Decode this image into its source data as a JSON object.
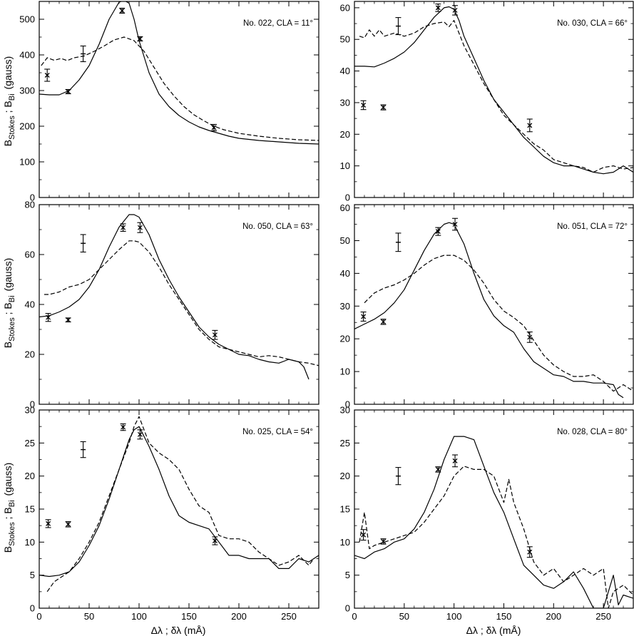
{
  "figure": {
    "ylabel": {
      "main1": "B",
      "sub1": "Stokes",
      "sep": " ; ",
      "main2": "B",
      "sub2": "Bi",
      "unit": "(gauss)"
    },
    "xlabel": "Δλ ; δλ (mÅ)"
  },
  "chart_data": [
    {
      "type": "line",
      "title": "No. 022, CLA = 11°",
      "xlim": [
        0,
        280
      ],
      "ylim": [
        0,
        550
      ],
      "xticks": [
        0,
        50,
        100,
        150,
        200,
        250
      ],
      "yticks": [
        0,
        100,
        200,
        300,
        400,
        500
      ],
      "series": [
        {
          "name": "solid",
          "style": "solid",
          "x": [
            0,
            10,
            20,
            30,
            40,
            50,
            60,
            70,
            80,
            85,
            90,
            95,
            100,
            110,
            120,
            130,
            140,
            150,
            160,
            170,
            180,
            190,
            200,
            220,
            240,
            260,
            280
          ],
          "y": [
            290,
            288,
            288,
            300,
            330,
            370,
            430,
            500,
            548,
            553,
            545,
            500,
            440,
            350,
            290,
            255,
            230,
            212,
            198,
            188,
            180,
            172,
            166,
            160,
            156,
            152,
            150
          ]
        },
        {
          "name": "dashed",
          "style": "dashed",
          "x": [
            2,
            8,
            15,
            22,
            28,
            35,
            45,
            55,
            65,
            75,
            85,
            95,
            105,
            115,
            125,
            135,
            145,
            155,
            165,
            175,
            185,
            200,
            220,
            240,
            260,
            280
          ],
          "y": [
            370,
            392,
            385,
            390,
            384,
            392,
            397,
            410,
            425,
            442,
            450,
            440,
            410,
            365,
            320,
            285,
            255,
            232,
            215,
            200,
            190,
            180,
            172,
            166,
            162,
            160
          ]
        },
        {
          "name": "data_points",
          "style": "points",
          "x": [
            8,
            29,
            44,
            83,
            101,
            175
          ],
          "y": [
            343,
            297,
            403,
            524,
            445,
            196
          ],
          "err": [
            17,
            6,
            22,
            7,
            6,
            9
          ],
          "marker": [
            "x",
            "x",
            "+",
            "x",
            "x",
            "x"
          ]
        }
      ]
    },
    {
      "type": "line",
      "title": "No. 030, CLA =  66°",
      "xlim": [
        0,
        280
      ],
      "ylim": [
        0,
        62
      ],
      "xticks": [
        0,
        50,
        100,
        150,
        200,
        250
      ],
      "yticks": [
        0,
        10,
        20,
        30,
        40,
        50,
        60
      ],
      "series": [
        {
          "name": "solid",
          "style": "solid",
          "x": [
            0,
            10,
            20,
            30,
            40,
            50,
            60,
            70,
            80,
            90,
            95,
            100,
            105,
            110,
            120,
            130,
            140,
            150,
            160,
            170,
            180,
            190,
            200,
            210,
            220,
            230,
            240,
            250,
            260,
            270,
            280
          ],
          "y": [
            41.5,
            41.5,
            41.3,
            42.5,
            44,
            46,
            49,
            53,
            57,
            60,
            60.3,
            59.5,
            56,
            51,
            44,
            37,
            31,
            27,
            23,
            19,
            16,
            13,
            11,
            10,
            10,
            9,
            8,
            7.5,
            8,
            10,
            8
          ]
        },
        {
          "name": "dashed",
          "style": "dashed",
          "x": [
            5,
            10,
            15,
            20,
            25,
            30,
            40,
            50,
            60,
            70,
            80,
            90,
            95,
            100,
            110,
            120,
            130,
            140,
            150,
            160,
            170,
            180,
            190,
            200,
            210,
            220,
            230,
            240,
            250,
            260,
            270,
            280
          ],
          "y": [
            51,
            50.5,
            53,
            51,
            53,
            51,
            52,
            51,
            52,
            54,
            55,
            55.5,
            54,
            56,
            48,
            42,
            36,
            31,
            26,
            23,
            20,
            17,
            15,
            12,
            11,
            10,
            9.5,
            8,
            9.5,
            10,
            9,
            9.5
          ]
        },
        {
          "name": "data_points",
          "style": "points",
          "x": [
            9,
            29,
            44,
            84,
            101,
            176
          ],
          "y": [
            29.2,
            28.5,
            54.2,
            60,
            59.2,
            22.8
          ],
          "err": [
            1.4,
            0.8,
            2.7,
            1.2,
            1.5,
            2
          ],
          "marker": [
            "x",
            "x",
            "+",
            "x",
            "x",
            "x"
          ]
        }
      ]
    },
    {
      "type": "line",
      "title": "No. 050, CLA = 63°",
      "xlim": [
        0,
        280
      ],
      "ylim": [
        0,
        80
      ],
      "xticks": [
        0,
        50,
        100,
        150,
        200,
        250
      ],
      "yticks": [
        0,
        20,
        40,
        60,
        80
      ],
      "series": [
        {
          "name": "solid",
          "style": "solid",
          "x": [
            0,
            10,
            20,
            30,
            40,
            50,
            60,
            70,
            80,
            90,
            95,
            100,
            110,
            120,
            130,
            140,
            150,
            160,
            170,
            180,
            190,
            200,
            210,
            220,
            230,
            240,
            250,
            260,
            265,
            270
          ],
          "y": [
            35,
            35.5,
            37,
            39,
            42,
            47,
            54,
            63,
            71,
            76,
            76,
            75,
            68,
            58,
            50,
            43,
            37,
            31,
            27,
            24,
            22,
            20,
            19.5,
            18,
            17,
            16.5,
            18,
            17,
            15,
            10
          ]
        },
        {
          "name": "dashed",
          "style": "dashed",
          "x": [
            5,
            10,
            20,
            30,
            40,
            50,
            60,
            70,
            80,
            90,
            95,
            100,
            110,
            120,
            130,
            140,
            150,
            160,
            170,
            180,
            190,
            200,
            210,
            220,
            230,
            240,
            250,
            260,
            270,
            280
          ],
          "y": [
            44,
            44,
            45,
            47,
            48,
            50,
            54,
            58,
            62,
            65.5,
            65.5,
            65,
            61,
            55,
            48,
            42,
            36,
            30,
            26,
            23,
            22,
            21,
            20,
            19,
            19.5,
            19,
            18,
            17,
            16.5,
            15.5
          ]
        },
        {
          "name": "data_points",
          "style": "points",
          "x": [
            9,
            29,
            44,
            84,
            101,
            176
          ],
          "y": [
            34.8,
            33.8,
            64.5,
            70.8,
            70.8,
            27.8
          ],
          "err": [
            1.6,
            0.8,
            3.5,
            1.5,
            2,
            1.8
          ],
          "marker": [
            "x",
            "x",
            "+",
            "x",
            "x",
            "x"
          ]
        }
      ]
    },
    {
      "type": "line",
      "title": "No. 051, CLA =  72°",
      "xlim": [
        0,
        280
      ],
      "ylim": [
        0,
        61
      ],
      "xticks": [
        0,
        50,
        100,
        150,
        200,
        250
      ],
      "yticks": [
        0,
        10,
        20,
        30,
        40,
        50,
        60
      ],
      "series": [
        {
          "name": "solid",
          "style": "solid",
          "x": [
            0,
            10,
            20,
            30,
            40,
            50,
            60,
            70,
            80,
            90,
            95,
            100,
            110,
            120,
            130,
            140,
            150,
            160,
            170,
            180,
            190,
            200,
            210,
            220,
            230,
            240,
            250,
            260,
            265,
            270
          ],
          "y": [
            23,
            24.5,
            26,
            28,
            31,
            35,
            41,
            47,
            52,
            55,
            55.5,
            55,
            49,
            40,
            32,
            27,
            24,
            22,
            17,
            13,
            11,
            9,
            8.5,
            7,
            7,
            6.5,
            6.5,
            6,
            3,
            2
          ]
        },
        {
          "name": "dashed",
          "style": "dashed",
          "x": [
            10,
            20,
            30,
            40,
            50,
            60,
            70,
            80,
            90,
            100,
            110,
            120,
            130,
            140,
            150,
            160,
            170,
            180,
            190,
            200,
            210,
            220,
            230,
            240,
            250,
            260,
            270,
            280
          ],
          "y": [
            31,
            34,
            35.5,
            36.5,
            38,
            40,
            42.5,
            44.5,
            45.5,
            45.5,
            44,
            41,
            37,
            32,
            28.5,
            26.5,
            24,
            19.5,
            15,
            12,
            10,
            8.5,
            8.5,
            9,
            7,
            4,
            6,
            4
          ]
        },
        {
          "name": "data_points",
          "style": "points",
          "x": [
            9,
            29,
            44,
            84,
            101,
            176
          ],
          "y": [
            26.8,
            25.2,
            49.5,
            52.8,
            55,
            20.5
          ],
          "err": [
            1.4,
            0.8,
            2.8,
            1.2,
            1.8,
            1.6
          ],
          "marker": [
            "x",
            "x",
            "+",
            "x",
            "x",
            "x"
          ]
        }
      ]
    },
    {
      "type": "line",
      "title": "No. 025, CLA = 54°",
      "xlim": [
        0,
        280
      ],
      "ylim": [
        0,
        30
      ],
      "xticks": [
        0,
        50,
        100,
        150,
        200,
        250
      ],
      "yticks": [
        0,
        5,
        10,
        15,
        20,
        25,
        30
      ],
      "series": [
        {
          "name": "solid",
          "style": "solid",
          "x": [
            0,
            10,
            20,
            30,
            40,
            50,
            60,
            70,
            80,
            90,
            95,
            100,
            110,
            120,
            130,
            140,
            150,
            160,
            170,
            180,
            190,
            200,
            210,
            220,
            230,
            240,
            250,
            260,
            270,
            280
          ],
          "y": [
            5,
            4.8,
            5,
            5.5,
            7,
            9.5,
            12.5,
            16.5,
            21,
            25.5,
            27,
            27.5,
            24.5,
            21,
            17,
            14,
            13,
            12.5,
            12,
            10,
            8,
            8,
            7.5,
            7.5,
            7.5,
            6,
            6,
            7.5,
            7,
            8
          ]
        },
        {
          "name": "dashed",
          "style": "dashed",
          "x": [
            8,
            15,
            20,
            30,
            40,
            50,
            60,
            70,
            80,
            90,
            95,
            100,
            110,
            120,
            130,
            140,
            150,
            160,
            170,
            180,
            190,
            200,
            210,
            220,
            230,
            240,
            250,
            260,
            270,
            275
          ],
          "y": [
            2.5,
            4,
            4.5,
            5.5,
            7.5,
            10,
            13,
            17,
            21,
            25,
            27.5,
            29,
            25,
            23.5,
            22.5,
            21,
            18,
            15.5,
            14.5,
            11,
            10.5,
            10.5,
            10,
            8.5,
            7.5,
            6.5,
            7,
            8,
            6.5,
            7.5
          ]
        },
        {
          "name": "data_points",
          "style": "points",
          "x": [
            9,
            29,
            44,
            84,
            101,
            176
          ],
          "y": [
            12.8,
            12.7,
            24,
            27.4,
            26.3,
            10.2
          ],
          "err": [
            0.6,
            0.4,
            1.2,
            0.5,
            0.7,
            0.6
          ],
          "marker": [
            "x",
            "x",
            "+",
            "x",
            "x",
            "x"
          ]
        }
      ]
    },
    {
      "type": "line",
      "title": "No. 028, CLA =  80°",
      "xlim": [
        0,
        280
      ],
      "ylim": [
        0,
        30
      ],
      "xticks": [
        0,
        50,
        100,
        150,
        200,
        250
      ],
      "yticks": [
        0,
        5,
        10,
        15,
        20,
        25,
        30
      ],
      "series": [
        {
          "name": "solid",
          "style": "solid",
          "x": [
            0,
            10,
            20,
            30,
            40,
            50,
            60,
            70,
            80,
            90,
            100,
            110,
            120,
            130,
            140,
            150,
            160,
            170,
            180,
            190,
            200,
            210,
            220,
            230,
            240,
            250,
            260,
            265,
            270,
            280
          ],
          "y": [
            8,
            7.5,
            8.5,
            9,
            10,
            10.5,
            12,
            14.5,
            18,
            22.5,
            26,
            26,
            25.5,
            21.5,
            17.5,
            14.5,
            10.5,
            6.5,
            5,
            3.5,
            3,
            4,
            5.5,
            3,
            0,
            0,
            5,
            0.5,
            2,
            1.5
          ]
        },
        {
          "name": "dashed",
          "style": "dashed",
          "x": [
            5,
            10,
            15,
            20,
            30,
            40,
            50,
            60,
            70,
            80,
            90,
            100,
            110,
            120,
            130,
            140,
            150,
            155,
            160,
            170,
            180,
            190,
            200,
            210,
            220,
            230,
            240,
            250,
            255,
            260,
            270,
            280
          ],
          "y": [
            10,
            14.5,
            9,
            9.5,
            10,
            10.5,
            11,
            11.5,
            13,
            15,
            17,
            20,
            21.5,
            21,
            21,
            20,
            16,
            19.5,
            16,
            12,
            7,
            5,
            6,
            4,
            5,
            6,
            5,
            6,
            0,
            2.5,
            3.5,
            2
          ]
        },
        {
          "name": "data_points",
          "style": "points",
          "x": [
            9,
            29,
            44,
            84,
            101,
            176
          ],
          "y": [
            11.1,
            10.1,
            20,
            21,
            22.3,
            8.5
          ],
          "err": [
            0.8,
            0.4,
            1.3,
            0.4,
            0.9,
            0.8
          ],
          "marker": [
            "x",
            "x",
            "+",
            "x",
            "x",
            "x"
          ]
        }
      ]
    }
  ]
}
